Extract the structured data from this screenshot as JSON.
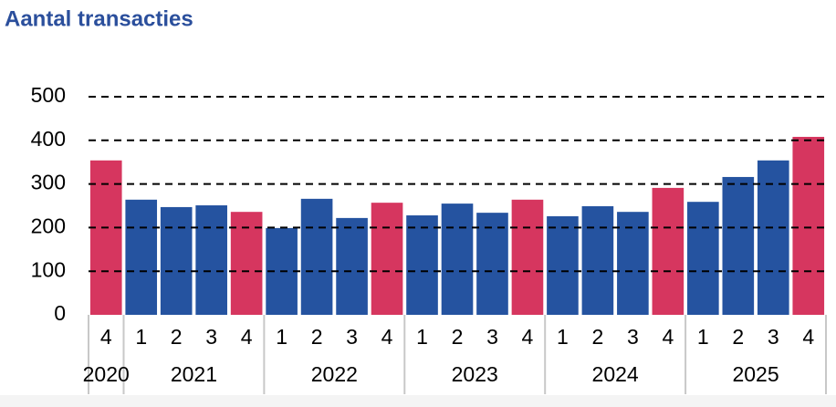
{
  "chart_data": {
    "type": "bar",
    "title": "Aantal transacties",
    "groups": [
      {
        "label": "2020",
        "categories": [
          "4"
        ]
      },
      {
        "label": "2021",
        "categories": [
          "1",
          "2",
          "3",
          "4"
        ]
      },
      {
        "label": "2022",
        "categories": [
          "1",
          "2",
          "3",
          "4"
        ]
      },
      {
        "label": "2023",
        "categories": [
          "1",
          "2",
          "3",
          "4"
        ]
      },
      {
        "label": "2024",
        "categories": [
          "1",
          "2",
          "3",
          "4"
        ]
      },
      {
        "label": "2025",
        "categories": [
          "1",
          "2",
          "3",
          "4"
        ]
      }
    ],
    "values": [
      354,
      264,
      247,
      251,
      236,
      199,
      266,
      222,
      257,
      228,
      255,
      234,
      264,
      226,
      249,
      236,
      291,
      259,
      316,
      354,
      408
    ],
    "colors": [
      "#d6365f",
      "#2553a0",
      "#2553a0",
      "#2553a0",
      "#d6365f",
      "#2553a0",
      "#2553a0",
      "#2553a0",
      "#d6365f",
      "#2553a0",
      "#2553a0",
      "#2553a0",
      "#d6365f",
      "#2553a0",
      "#2553a0",
      "#2553a0",
      "#d6365f",
      "#2553a0",
      "#2553a0",
      "#2553a0",
      "#d6365f"
    ],
    "ylim": [
      0,
      500
    ],
    "yticks": [
      0,
      100,
      200,
      300,
      400,
      500
    ],
    "grid": true
  }
}
